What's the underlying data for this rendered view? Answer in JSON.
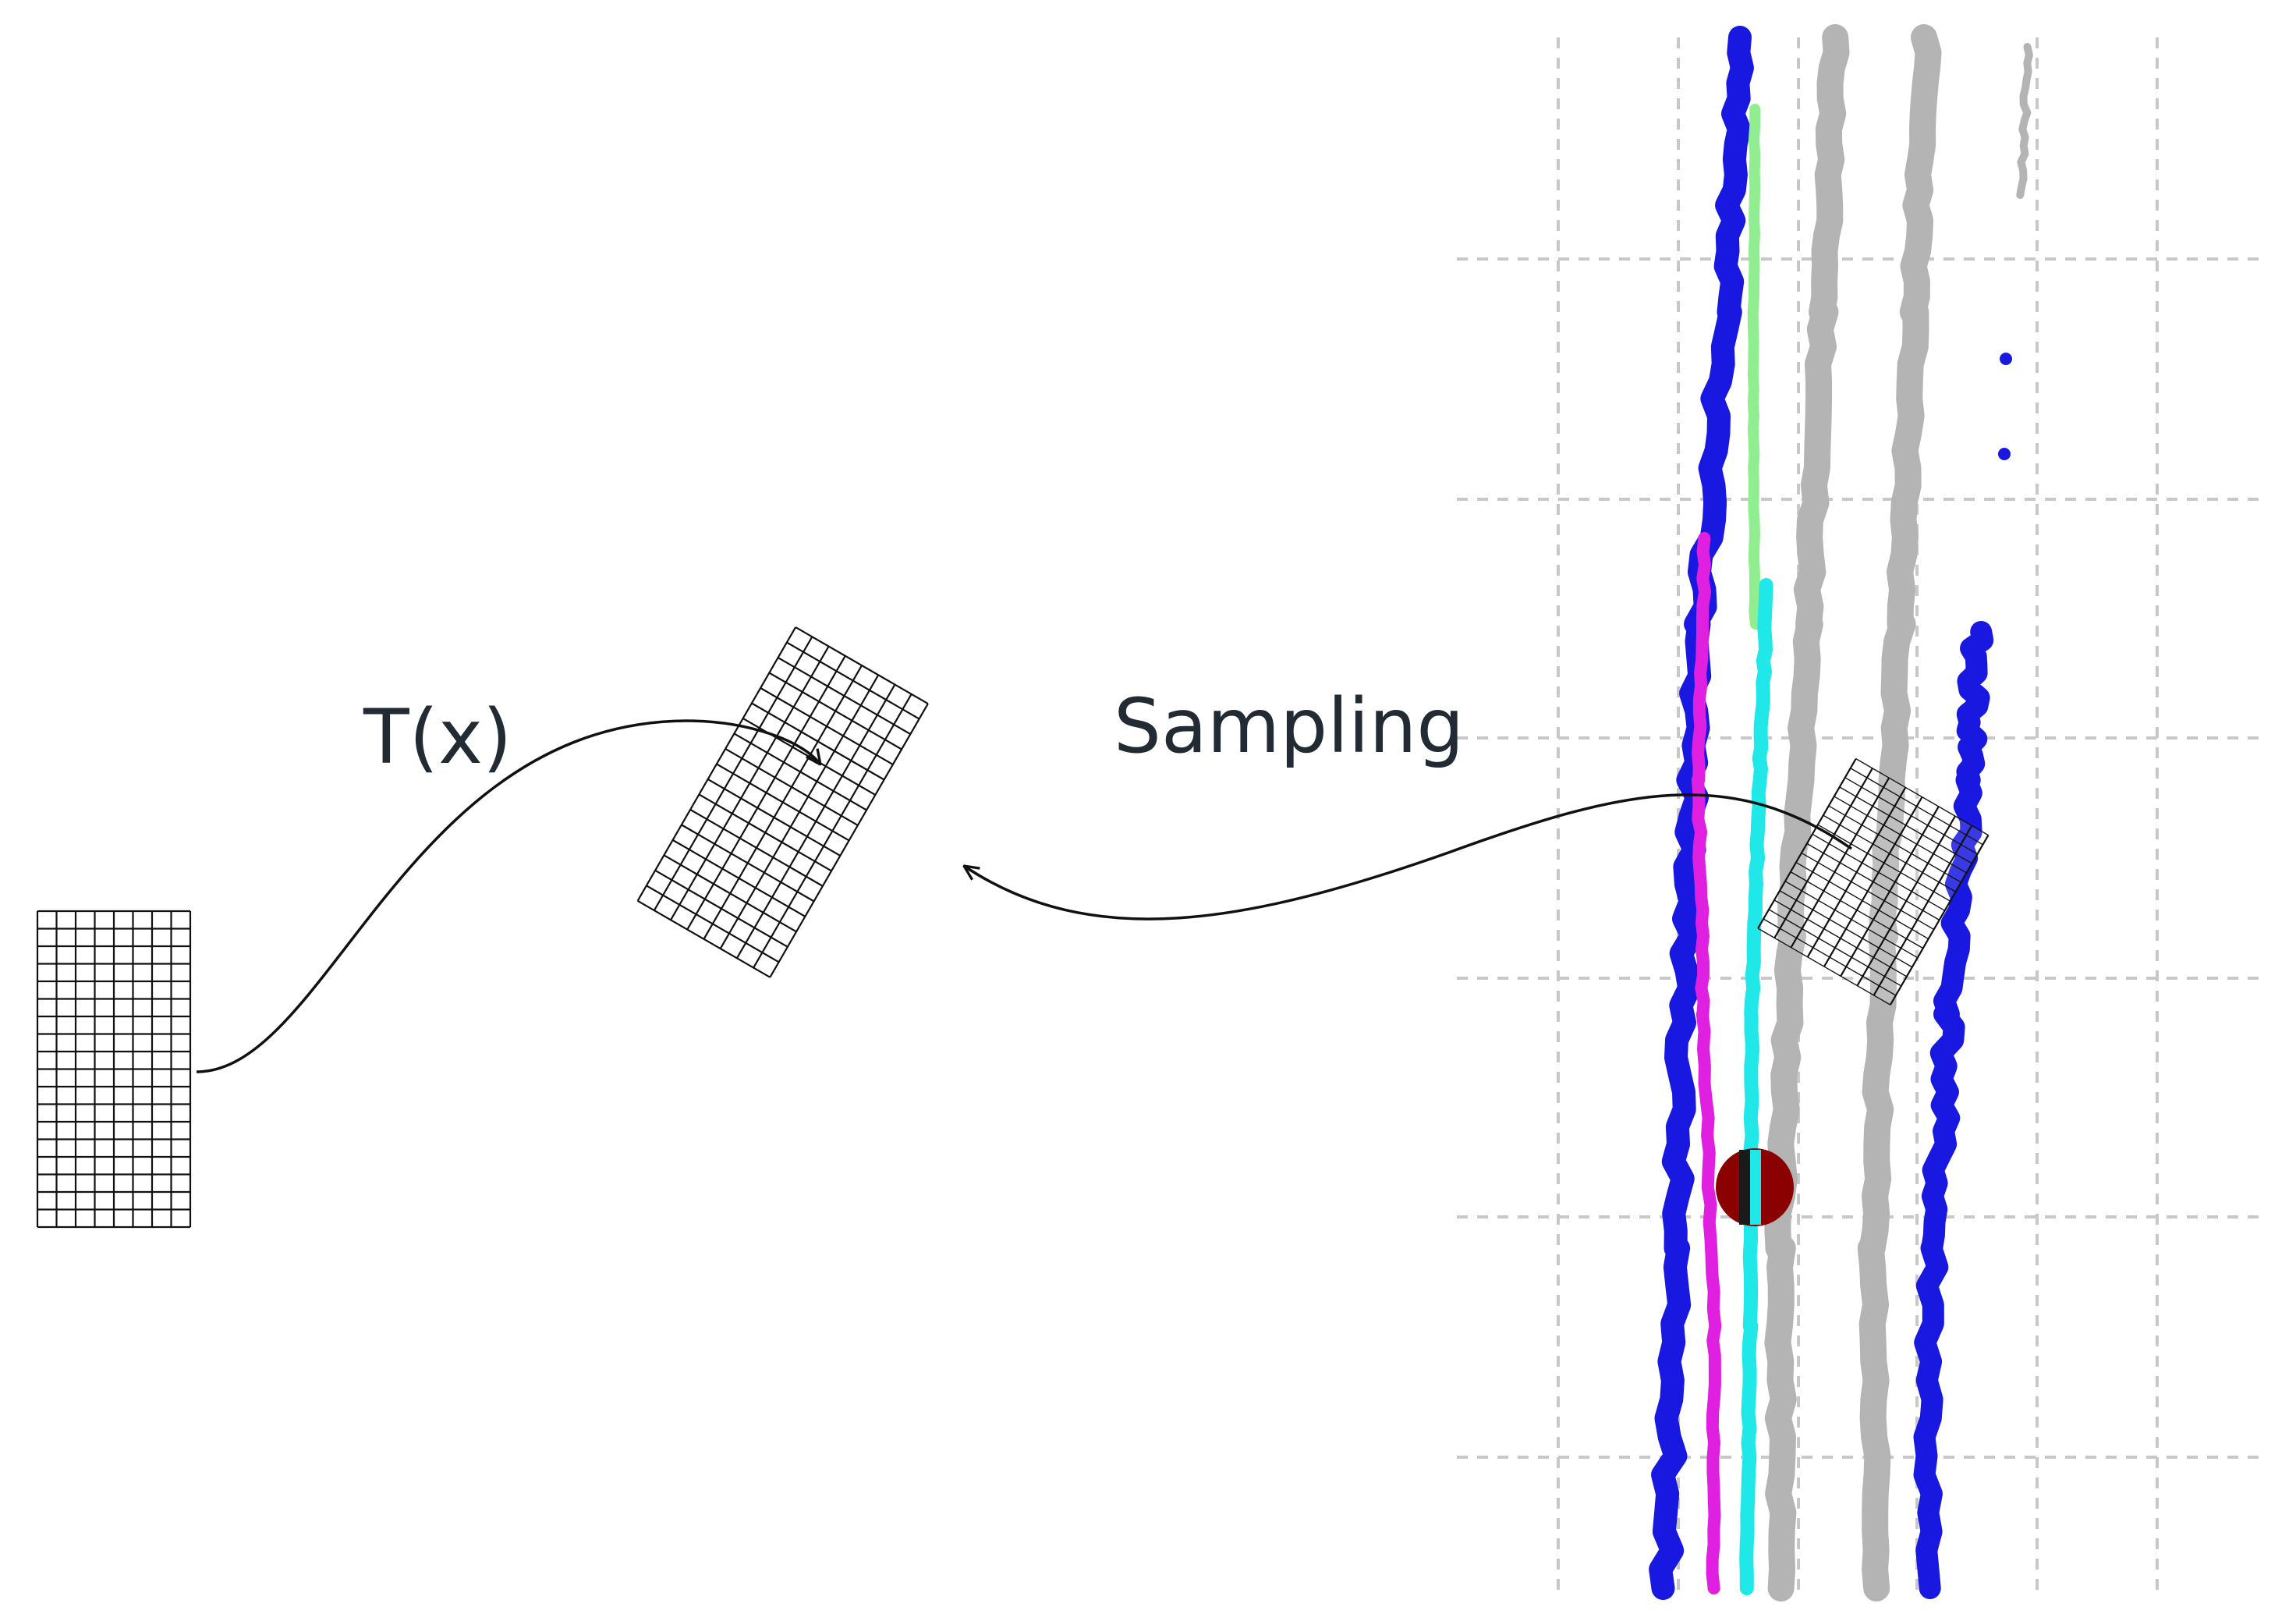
{
  "labels": {
    "transform": "T(x)",
    "sampling": "Sampling"
  },
  "colors": {
    "background": "#ffffff",
    "ink": "#111111",
    "label": "#222a33",
    "grid_line": "#c8c8c8",
    "lane_blue": "#1818e0",
    "lane_magenta": "#e020e0",
    "lane_cyan": "#20e8e8",
    "lane_green": "#90ee90",
    "lane_gray": "#b4b4b4",
    "marker_red": "#8b0000"
  },
  "grids": [
    {
      "name": "source-grid",
      "columns": 8,
      "rows": 18
    },
    {
      "name": "transformed-grid",
      "columns": 8,
      "rows": 18
    },
    {
      "name": "sampling-grid",
      "columns": 8,
      "rows": 18
    }
  ]
}
